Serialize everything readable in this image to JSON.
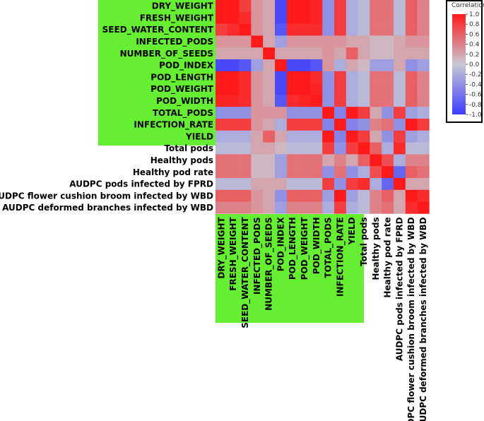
{
  "chart_data": {
    "type": "heatmap",
    "title": "",
    "legend": {
      "title": "Correlation",
      "ticks": [
        "1.0",
        "0.8",
        "0.6",
        "0.4",
        "0.2",
        "0.0",
        "-0.2",
        "-0.4",
        "-0.6",
        "-0.8",
        "-1.0"
      ],
      "range": [
        -1,
        1
      ],
      "placement": "top-right"
    },
    "highlight_color": "#66ee33",
    "low_color": "#3b3bff",
    "mid_color": "#c8c8d4",
    "high_color": "#ff1a1a",
    "highlighted_variables": 12,
    "variables": [
      "DRY_WEIGHT",
      "FRESH_WEIGHT",
      "SEED_WATER_CONTENT",
      "INFECTED_PODS",
      "NUMBER_OF_SEEDS",
      "POD_INDEX",
      "POD_LENGTH",
      "POD_WEIGHT",
      "POD_WIDTH",
      "TOTAL_PODS",
      "INFECTION_RATE",
      "YIELD",
      "Total pods",
      "Healthy pods",
      "Healthy pod rate",
      "AUDPC pods infected by FPRD",
      "AUDPC flower cushion broom infected by WBD",
      "AUDPC deformed branches infected by WBD"
    ],
    "matrix": [
      [
        1.0,
        1.0,
        0.8,
        0.3,
        0.2,
        -0.9,
        1.0,
        1.0,
        0.95,
        -0.4,
        0.8,
        -0.2,
        -0.1,
        0.5,
        0.5,
        -0.1,
        0.6,
        0.4
      ],
      [
        1.0,
        1.0,
        0.9,
        0.3,
        0.2,
        -0.9,
        1.0,
        1.0,
        0.95,
        -0.4,
        0.8,
        -0.2,
        -0.1,
        0.5,
        0.5,
        -0.1,
        0.6,
        0.4
      ],
      [
        0.8,
        0.9,
        1.0,
        0.3,
        0.2,
        -0.8,
        0.9,
        0.9,
        0.9,
        -0.4,
        0.8,
        -0.2,
        -0.1,
        0.5,
        0.5,
        -0.1,
        0.6,
        0.4
      ],
      [
        0.3,
        0.3,
        0.3,
        1.0,
        0.2,
        -0.3,
        0.3,
        0.3,
        0.3,
        0.3,
        0.3,
        0.2,
        0.2,
        0.1,
        0.1,
        0.2,
        0.3,
        0.3
      ],
      [
        0.2,
        0.2,
        0.2,
        0.2,
        1.0,
        0.2,
        0.2,
        0.2,
        0.2,
        0.3,
        0.2,
        0.6,
        0.2,
        0.1,
        0.1,
        0.2,
        0.2,
        0.2
      ],
      [
        -0.9,
        -0.9,
        -0.8,
        -0.3,
        0.2,
        1.0,
        -0.9,
        -0.9,
        -0.8,
        0.3,
        -0.2,
        0.2,
        0.1,
        -0.3,
        -0.3,
        0.2,
        -0.4,
        -0.3
      ],
      [
        1.0,
        1.0,
        0.9,
        0.3,
        0.2,
        -0.9,
        1.0,
        1.0,
        0.9,
        -0.4,
        0.8,
        -0.2,
        -0.1,
        0.5,
        0.5,
        -0.1,
        0.6,
        0.4
      ],
      [
        1.0,
        1.0,
        0.9,
        0.3,
        0.2,
        -0.9,
        1.0,
        1.0,
        0.95,
        -0.4,
        0.8,
        -0.2,
        -0.1,
        0.5,
        0.5,
        -0.1,
        0.6,
        0.4
      ],
      [
        0.95,
        0.95,
        0.9,
        0.3,
        0.2,
        -0.8,
        0.9,
        0.95,
        1.0,
        -0.4,
        0.8,
        -0.2,
        -0.1,
        0.5,
        0.5,
        -0.1,
        0.6,
        0.4
      ],
      [
        -0.4,
        -0.4,
        -0.4,
        0.3,
        0.3,
        0.3,
        -0.4,
        -0.4,
        -0.4,
        1.0,
        -0.5,
        1.0,
        0.8,
        0.2,
        -0.4,
        0.8,
        -0.3,
        -0.2
      ],
      [
        0.8,
        0.8,
        0.8,
        0.3,
        0.2,
        -0.2,
        0.8,
        0.8,
        0.8,
        -0.5,
        1.0,
        -0.5,
        -0.4,
        0.4,
        0.5,
        -0.4,
        1.0,
        0.8
      ],
      [
        -0.2,
        -0.2,
        -0.2,
        0.2,
        0.6,
        0.2,
        -0.2,
        -0.2,
        -0.2,
        1.0,
        -0.5,
        1.0,
        0.8,
        0.2,
        -0.4,
        0.8,
        -0.3,
        -0.2
      ],
      [
        -0.1,
        -0.1,
        -0.1,
        0.2,
        0.2,
        0.1,
        -0.1,
        -0.1,
        -0.1,
        0.8,
        -0.4,
        0.8,
        1.0,
        0.6,
        -0.2,
        0.9,
        -0.1,
        -0.1
      ],
      [
        0.5,
        0.5,
        0.5,
        0.1,
        0.1,
        -0.3,
        0.5,
        0.5,
        0.5,
        0.2,
        0.4,
        0.2,
        0.6,
        1.0,
        0.7,
        -0.2,
        0.4,
        0.4
      ],
      [
        0.5,
        0.5,
        0.5,
        0.1,
        0.1,
        -0.3,
        0.5,
        0.5,
        0.5,
        -0.4,
        0.5,
        -0.4,
        -0.2,
        0.7,
        1.0,
        -0.7,
        0.6,
        0.5
      ],
      [
        -0.1,
        -0.1,
        -0.1,
        0.2,
        0.2,
        0.2,
        -0.1,
        -0.1,
        -0.1,
        0.8,
        -0.4,
        0.8,
        0.9,
        -0.2,
        -0.7,
        1.0,
        0.2,
        0.2
      ],
      [
        0.6,
        0.6,
        0.6,
        0.3,
        0.2,
        -0.4,
        0.6,
        0.6,
        0.6,
        -0.3,
        1.0,
        -0.3,
        -0.1,
        0.4,
        0.6,
        0.2,
        1.0,
        0.9
      ],
      [
        0.4,
        0.4,
        0.4,
        0.3,
        0.2,
        -0.3,
        0.4,
        0.4,
        0.4,
        -0.2,
        0.8,
        -0.2,
        -0.1,
        0.4,
        0.5,
        0.2,
        0.9,
        1.0
      ]
    ]
  }
}
